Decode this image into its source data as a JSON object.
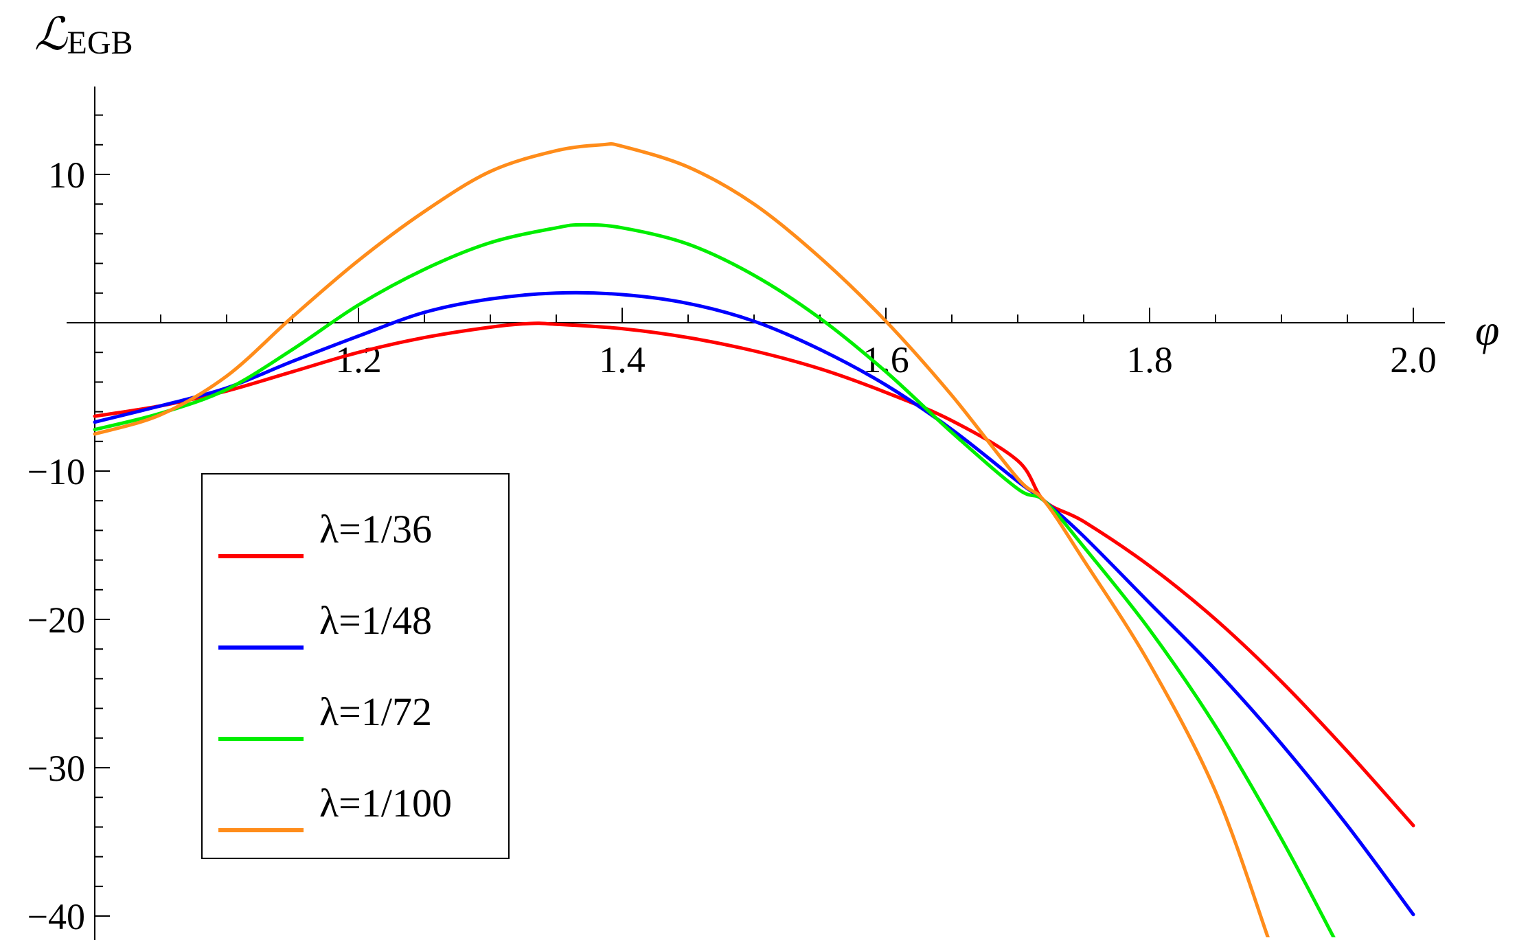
{
  "chart_data": {
    "type": "line",
    "title": "",
    "ylabel_main": "ℒ",
    "ylabel_sub": "EGB",
    "xlabel": "φ",
    "xlim": [
      0.99,
      2.02
    ],
    "ylim": [
      -40.5,
      16
    ],
    "x_ticks": [
      {
        "value": 1.2,
        "label": "1.2"
      },
      {
        "value": 1.4,
        "label": "1.4"
      },
      {
        "value": 1.6,
        "label": "1.6"
      },
      {
        "value": 1.8,
        "label": "1.8"
      },
      {
        "value": 2.0,
        "label": "2.0"
      }
    ],
    "y_ticks": [
      {
        "value": 10,
        "label": "10"
      },
      {
        "value": -10,
        "label": "−10"
      },
      {
        "value": -20,
        "label": "−20"
      },
      {
        "value": -30,
        "label": "−30"
      },
      {
        "value": -40,
        "label": "−40"
      }
    ],
    "legend_position": "bottom-left",
    "series": [
      {
        "name": "λ=1/36",
        "color": "#ff0000",
        "x": [
          1.0,
          1.05,
          1.1,
          1.15,
          1.2,
          1.25,
          1.3,
          1.33,
          1.35,
          1.4,
          1.45,
          1.5,
          1.55,
          1.6,
          1.65,
          1.7,
          1.72,
          1.75,
          1.8,
          1.85,
          1.9,
          1.95,
          2.0
        ],
        "y": [
          -6.3,
          -5.6,
          -4.6,
          -3.3,
          -2.0,
          -1.0,
          -0.3,
          -0.05,
          -0.1,
          -0.4,
          -1.0,
          -1.9,
          -3.1,
          -4.7,
          -6.6,
          -9.3,
          -12.0,
          -13.4,
          -16.4,
          -20.0,
          -24.2,
          -28.9,
          -33.9
        ]
      },
      {
        "name": "λ=1/48",
        "color": "#0000ff",
        "x": [
          1.0,
          1.05,
          1.1,
          1.15,
          1.2,
          1.25,
          1.3,
          1.35,
          1.4,
          1.45,
          1.5,
          1.55,
          1.6,
          1.65,
          1.7,
          1.72,
          1.75,
          1.8,
          1.85,
          1.9,
          1.95,
          2.0
        ],
        "y": [
          -6.7,
          -5.6,
          -4.4,
          -2.6,
          -0.9,
          0.7,
          1.6,
          2.0,
          1.9,
          1.3,
          0.1,
          -1.8,
          -4.2,
          -7.2,
          -10.7,
          -12.0,
          -14.4,
          -18.9,
          -23.4,
          -28.4,
          -33.9,
          -39.9
        ]
      },
      {
        "name": "λ=1/72",
        "color": "#00ee00",
        "x": [
          1.0,
          1.05,
          1.1,
          1.15,
          1.2,
          1.25,
          1.3,
          1.35,
          1.37,
          1.4,
          1.45,
          1.5,
          1.55,
          1.6,
          1.65,
          1.7,
          1.72,
          1.75,
          1.8,
          1.85,
          1.9,
          1.94
        ],
        "y": [
          -7.2,
          -6.1,
          -4.5,
          -1.8,
          1.2,
          3.6,
          5.4,
          6.4,
          6.6,
          6.4,
          5.3,
          3.2,
          0.3,
          -3.3,
          -7.4,
          -11.2,
          -12.0,
          -15.1,
          -20.7,
          -27.2,
          -34.8,
          -41.5
        ]
      },
      {
        "name": "λ=1/100",
        "color": "#ff8c1a",
        "x": [
          1.0,
          1.05,
          1.1,
          1.15,
          1.2,
          1.25,
          1.3,
          1.35,
          1.385,
          1.4,
          1.45,
          1.5,
          1.55,
          1.6,
          1.65,
          1.7,
          1.72,
          1.75,
          1.8,
          1.85,
          1.89
        ],
        "y": [
          -7.5,
          -6.2,
          -3.6,
          0.4,
          4.2,
          7.5,
          10.2,
          11.6,
          12.0,
          11.9,
          10.5,
          8.0,
          4.4,
          0.1,
          -4.9,
          -10.5,
          -12.0,
          -16.0,
          -23.0,
          -31.6,
          -41.5
        ]
      }
    ]
  }
}
